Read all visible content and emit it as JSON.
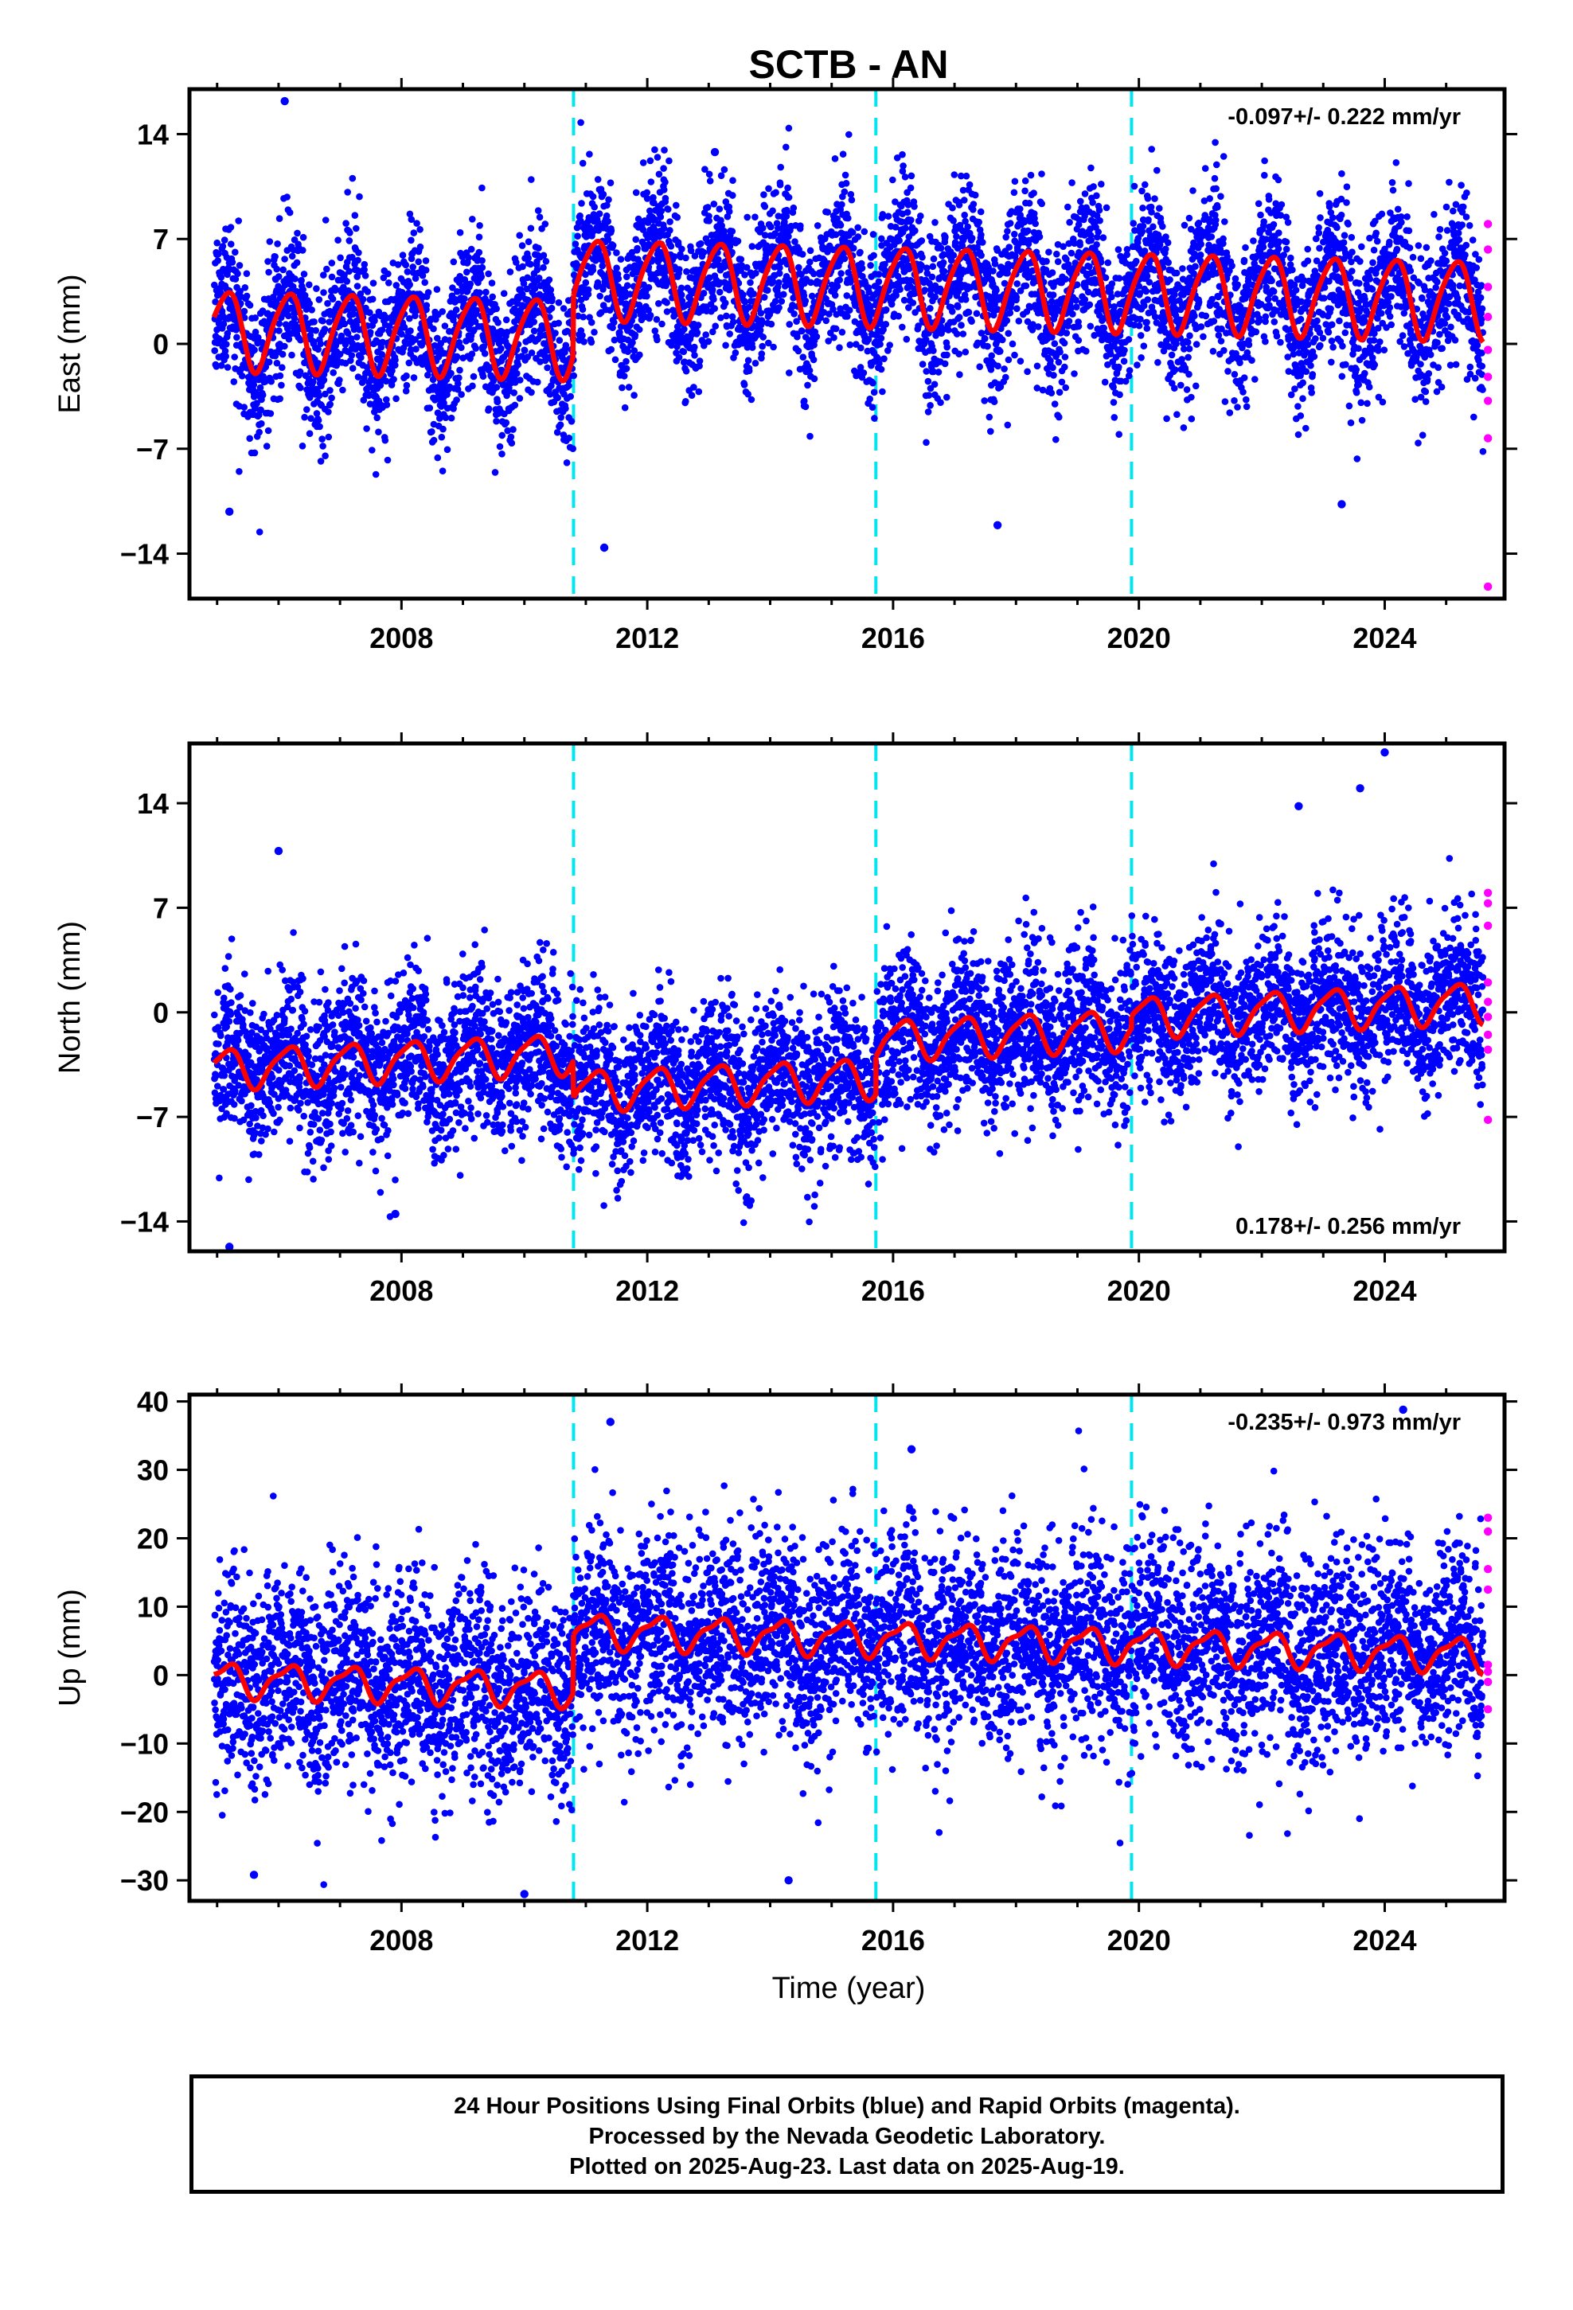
{
  "chart_data": {
    "type": "scatter",
    "title": "SCTB - AN",
    "xlabel": "Time (year)",
    "xlim": [
      2004.55,
      2025.95
    ],
    "x_ticks": [
      2008,
      2012,
      2016,
      2020,
      2024
    ],
    "steps": [
      2010.8,
      2015.72,
      2019.88
    ],
    "final_color": "#0000ff",
    "rapid_color": "#ff00ff",
    "model_color": "#ff0000",
    "step_color": "#00e5ee",
    "panels": [
      {
        "name": "East",
        "ylabel": "East (mm)",
        "ylim": [
          -17,
          17
        ],
        "y_ticks": [
          14,
          7,
          0,
          -7,
          -14
        ],
        "y_tick_labels": [
          "14",
          "7",
          "0",
          "−7",
          "−14"
        ],
        "rate": "-0.097+/- 0.222 mm/yr",
        "rate_position": "top-right",
        "noise_sd": 2.6,
        "model": {
          "offset": 0.0,
          "trend": -0.097,
          "annual_amp": 2.6,
          "semiannual_amp": 0.4,
          "steps": [
            4.0,
            0.0,
            0.0
          ]
        },
        "rapid_values": [
          8.0,
          6.3,
          3.8,
          1.8,
          -0.4,
          -2.2,
          -3.8,
          -6.3,
          -16.2
        ],
        "outliers": [
          [
            2006.1,
            16.2
          ],
          [
            2013.1,
            12.8
          ],
          [
            2011.3,
            -13.6
          ],
          [
            2005.2,
            -11.2
          ],
          [
            2017.7,
            -12.1
          ],
          [
            2023.3,
            -10.7
          ]
        ]
      },
      {
        "name": "North",
        "ylabel": "North (mm)",
        "ylim": [
          -16,
          18
        ],
        "y_ticks": [
          14,
          7,
          0,
          -7,
          -14
        ],
        "y_tick_labels": [
          "14",
          "7",
          "0",
          "−7",
          "−14"
        ],
        "rate": "0.178+/- 0.256 mm/yr",
        "rate_position": "bottom-right",
        "noise_sd": 2.6,
        "model": {
          "offset": -2.0,
          "trend": 0.178,
          "annual_amp": 1.3,
          "semiannual_amp": 0.3,
          "steps": [
            -2.5,
            2.5,
            0.8
          ]
        },
        "rapid_values": [
          8.0,
          7.3,
          5.8,
          2.0,
          0.7,
          -0.3,
          -1.5,
          -2.5,
          -7.2
        ],
        "outliers": [
          [
            2024.0,
            17.4
          ],
          [
            2023.6,
            15.0
          ],
          [
            2005.2,
            -15.7
          ],
          [
            2007.9,
            -13.5
          ],
          [
            2006.0,
            10.8
          ],
          [
            2022.6,
            13.8
          ]
        ]
      },
      {
        "name": "Up",
        "ylabel": "Up (mm)",
        "ylim": [
          -33,
          41
        ],
        "y_ticks": [
          40,
          30,
          20,
          10,
          0,
          -10,
          -20,
          -30
        ],
        "y_tick_labels": [
          "40",
          "30",
          "20",
          "10",
          "0",
          "−10",
          "−20",
          "−30"
        ],
        "rate": "-0.235+/- 0.973 mm/yr",
        "rate_position": "top-right",
        "noise_sd": 7.5,
        "model": {
          "offset": -3.0,
          "trend": -0.235,
          "annual_amp": 2.3,
          "semiannual_amp": 0.8,
          "steps": [
            8.5,
            0.0,
            0.0
          ]
        },
        "rapid_values": [
          23.0,
          21.0,
          15.5,
          12.5,
          1.5,
          0.5,
          -1.0,
          -5.0
        ],
        "outliers": [
          [
            2011.4,
            37.0
          ],
          [
            2024.3,
            38.8
          ],
          [
            2016.3,
            33.0
          ],
          [
            2010.0,
            -32.0
          ],
          [
            2014.3,
            -30.0
          ],
          [
            2005.6,
            -29.2
          ]
        ]
      }
    ],
    "footer_lines": [
      "24 Hour Positions Using Final Orbits (blue) and Rapid Orbits (magenta).",
      "Processed by the Nevada Geodetic Laboratory.",
      "Plotted on 2025-Aug-23. Last data on 2025-Aug-19."
    ]
  }
}
